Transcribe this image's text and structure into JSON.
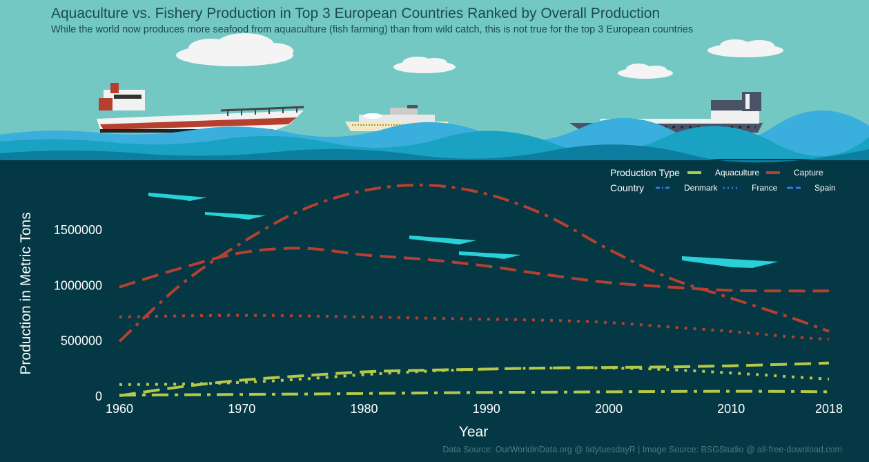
{
  "title": "Aquaculture vs. Fishery Production in Top 3 European Countries Ranked by Overall Production",
  "subtitle": "While the world now produces more seafood from aquaculture (fish farming) than from wild catch, this is not true for the top 3 European countries",
  "caption": "Data Source: OurWorldinData.org @ tidytuesdayR | Image Source: BSGStudio @ all-free-download.com",
  "colors": {
    "aquaculture": "#b5c84a",
    "capture": "#b6402f",
    "country_key": "#3b73e8",
    "text": "#ffffff",
    "sky": "#74c8c3",
    "sea": "#043844"
  },
  "legend": {
    "production_type_title": "Production Type",
    "production_types": [
      "Aquaculture",
      "Capture"
    ],
    "country_title": "Country",
    "countries": [
      "Denmark",
      "France",
      "Spain"
    ]
  },
  "chart_data": {
    "type": "line",
    "title": "Aquaculture vs. Fishery Production in Top 3 European Countries Ranked by Overall Production",
    "xlabel": "Year",
    "ylabel": "Production in Metric Tons",
    "xlim": [
      1960,
      2018
    ],
    "ylim": [
      0,
      1900000
    ],
    "x_ticks": [
      1960,
      1970,
      1980,
      1990,
      2000,
      2010,
      2018
    ],
    "y_ticks": [
      0,
      500000,
      1000000,
      1500000
    ],
    "x": [
      1960,
      1965,
      1970,
      1975,
      1980,
      1985,
      1990,
      1995,
      2000,
      2005,
      2010,
      2015,
      2018
    ],
    "series": [
      {
        "name": "Denmark Capture",
        "country": "Denmark",
        "production_type": "Capture",
        "values": [
          490000,
          1000000,
          1380000,
          1680000,
          1850000,
          1900000,
          1820000,
          1620000,
          1320000,
          1060000,
          880000,
          700000,
          580000
        ]
      },
      {
        "name": "Spain Capture",
        "country": "Spain",
        "production_type": "Capture",
        "values": [
          980000,
          1150000,
          1290000,
          1330000,
          1270000,
          1230000,
          1170000,
          1090000,
          1020000,
          980000,
          950000,
          945000,
          945000
        ]
      },
      {
        "name": "France Capture",
        "country": "France",
        "production_type": "Capture",
        "values": [
          710000,
          720000,
          725000,
          720000,
          710000,
          700000,
          690000,
          680000,
          660000,
          620000,
          580000,
          530000,
          510000
        ]
      },
      {
        "name": "Spain Aquaculture",
        "country": "Spain",
        "production_type": "Aquaculture",
        "values": [
          0,
          80000,
          140000,
          180000,
          215000,
          230000,
          240000,
          250000,
          255000,
          260000,
          270000,
          285000,
          295000
        ]
      },
      {
        "name": "France Aquaculture",
        "country": "France",
        "production_type": "Aquaculture",
        "values": [
          100000,
          105000,
          120000,
          150000,
          190000,
          220000,
          240000,
          250000,
          250000,
          235000,
          205000,
          170000,
          150000
        ]
      },
      {
        "name": "Denmark Aquaculture",
        "country": "Denmark",
        "production_type": "Aquaculture",
        "values": [
          5000,
          8000,
          12000,
          15000,
          20000,
          25000,
          30000,
          32000,
          35000,
          38000,
          40000,
          38000,
          35000
        ]
      }
    ]
  }
}
